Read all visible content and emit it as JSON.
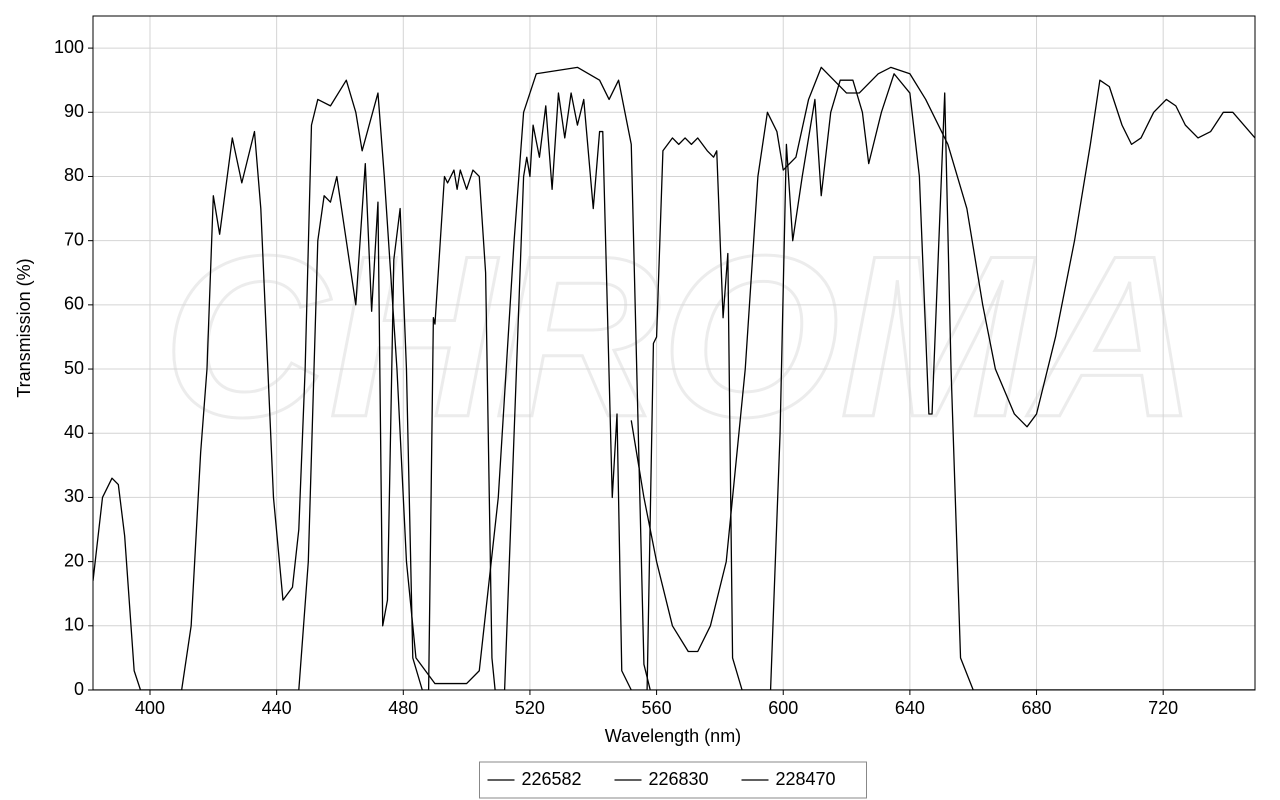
{
  "chart_data": {
    "type": "line",
    "watermark": "CHROMA",
    "x_label": "Wavelength (nm)",
    "y_label": "Transmission (%)",
    "xlim": [
      382,
      749
    ],
    "ylim": [
      0,
      105
    ],
    "xticks": [
      400,
      440,
      480,
      520,
      560,
      600,
      640,
      680,
      720
    ],
    "yticks": [
      0,
      10,
      20,
      30,
      40,
      50,
      60,
      70,
      80,
      90,
      100
    ],
    "grid": true,
    "legend": "bottom",
    "series": [
      {
        "name": "226582",
        "color": "#000000",
        "x": [
          382,
          385,
          388,
          390,
          392,
          395,
          397,
          410,
          413,
          416,
          418,
          420,
          422,
          426,
          429,
          433,
          435,
          439,
          442,
          445,
          447,
          449,
          451,
          453,
          457,
          462,
          465,
          467,
          472,
          474,
          478,
          481,
          484,
          490,
          500,
          504,
          510,
          515,
          518,
          522,
          535,
          542,
          545,
          548,
          552,
          556,
          558,
          749
        ],
        "values": [
          17,
          30,
          33,
          32,
          24,
          3,
          0,
          0,
          10,
          37,
          50,
          77,
          71,
          86,
          79,
          87,
          75,
          30,
          14,
          16,
          25,
          50,
          88,
          92,
          91,
          95,
          90,
          84,
          93,
          80,
          50,
          20,
          5,
          1,
          1,
          3,
          30,
          70,
          90,
          96,
          97,
          95,
          92,
          95,
          85,
          4,
          0,
          0
        ]
      },
      {
        "name": "226830",
        "color": "#000000",
        "x": [
          382,
          447,
          450,
          453,
          455,
          457,
          459,
          462,
          465,
          468,
          470,
          472,
          473.5,
          475,
          477,
          479,
          481,
          483,
          486,
          488,
          489.5,
          490,
          493,
          494,
          496,
          497,
          498,
          500,
          502,
          504,
          506,
          508,
          509,
          512,
          515,
          518,
          519,
          520,
          521,
          523,
          525,
          527,
          529,
          531,
          533,
          535,
          537,
          540,
          542,
          543,
          546,
          547.5,
          549,
          552,
          557,
          559,
          560,
          562,
          565,
          567,
          569,
          571,
          573,
          576,
          578,
          579,
          581,
          582.5,
          584,
          587,
          596,
          599,
          601,
          603,
          606,
          610,
          612,
          615,
          618,
          622,
          625,
          627,
          631,
          635,
          640,
          643,
          646,
          647,
          651,
          653,
          656,
          660,
          749
        ],
        "values": [
          0,
          0,
          20,
          70,
          77,
          76,
          80,
          70,
          60,
          82,
          59,
          76,
          10,
          14,
          67,
          75,
          50,
          5,
          0,
          0,
          58,
          57,
          80,
          79,
          81,
          78,
          81,
          78,
          81,
          80,
          65,
          5,
          0,
          0,
          40,
          80,
          83,
          80,
          88,
          83,
          91,
          78,
          93,
          86,
          93,
          88,
          92,
          75,
          87,
          87,
          30,
          43,
          3,
          0,
          0,
          54,
          55,
          84,
          86,
          85,
          86,
          85,
          86,
          84,
          83,
          84,
          58,
          68,
          5,
          0,
          0,
          40,
          85,
          70,
          80,
          92,
          77,
          90,
          95,
          95,
          90,
          82,
          90,
          96,
          93,
          80,
          43,
          43,
          93,
          50,
          5,
          0,
          0
        ]
      },
      {
        "name": "228470",
        "color": "#000000",
        "x": [
          552,
          556,
          560,
          565,
          570,
          573,
          577,
          582,
          588,
          592,
          595,
          598,
          600,
          604,
          608,
          612,
          616,
          620,
          624,
          630,
          634,
          640,
          645,
          652,
          658,
          663,
          667,
          673,
          677,
          680,
          686,
          692,
          697,
          700,
          703,
          707,
          710,
          713,
          717,
          721,
          724,
          727,
          731,
          735,
          739,
          742,
          749
        ],
        "values": [
          42,
          30,
          20,
          10,
          6,
          6,
          10,
          20,
          50,
          80,
          90,
          87,
          81,
          83,
          92,
          97,
          95,
          93,
          93,
          96,
          97,
          96,
          92,
          85,
          75,
          60,
          50,
          43,
          41,
          43,
          55,
          70,
          85,
          95,
          94,
          88,
          85,
          86,
          90,
          92,
          91,
          88,
          86,
          87,
          90,
          90,
          86
        ]
      }
    ]
  }
}
